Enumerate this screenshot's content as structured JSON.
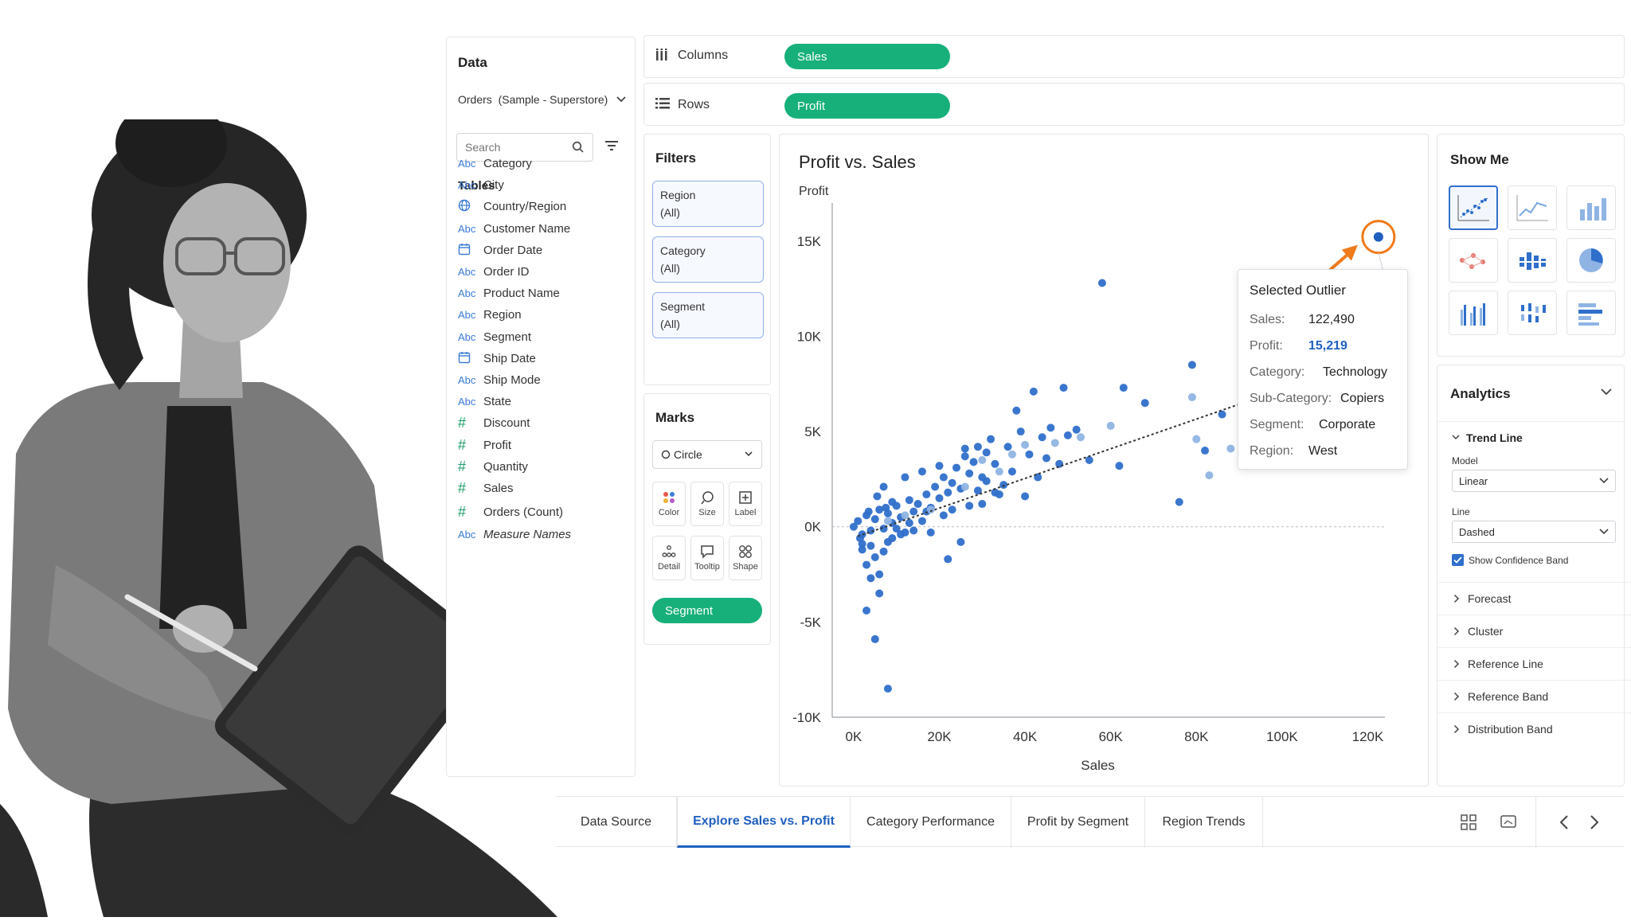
{
  "data_pane": {
    "title": "Data",
    "source": "Orders  (Sample - Superstore)",
    "search_placeholder": "Search",
    "tables_label": "Tables",
    "fields": [
      {
        "type": "Abc",
        "name": "Category"
      },
      {
        "type": "Abc",
        "name": "City"
      },
      {
        "type": "globe",
        "name": "Country/Region"
      },
      {
        "type": "Abc",
        "name": "Customer Name"
      },
      {
        "type": "date",
        "name": "Order Date"
      },
      {
        "type": "Abc",
        "name": "Order ID"
      },
      {
        "type": "Abc",
        "name": "Product Name"
      },
      {
        "type": "Abc",
        "name": "Region"
      },
      {
        "type": "Abc",
        "name": "Segment"
      },
      {
        "type": "date",
        "name": "Ship Date"
      },
      {
        "type": "Abc",
        "name": "Ship Mode"
      },
      {
        "type": "Abc",
        "name": "State"
      },
      {
        "type": "#",
        "name": "Discount"
      },
      {
        "type": "#",
        "name": "Profit"
      },
      {
        "type": "#",
        "name": "Quantity"
      },
      {
        "type": "#",
        "name": "Sales"
      },
      {
        "type": "#",
        "name": "Orders (Count)"
      },
      {
        "type": "Abc",
        "name": "Measure Names"
      }
    ]
  },
  "shelves": {
    "columns_label": "Columns",
    "columns_pill": "Sales",
    "rows_label": "Rows",
    "rows_pill": "Profit"
  },
  "filters": {
    "title": "Filters",
    "items": [
      {
        "name": "Region",
        "value": "(All)"
      },
      {
        "name": "Category",
        "value": "(All)"
      },
      {
        "name": "Segment",
        "value": "(All)"
      }
    ]
  },
  "marks": {
    "title": "Marks",
    "mark_type": "Circle",
    "buttons": [
      "Color",
      "Size",
      "Label",
      "Detail",
      "Tooltip",
      "Shape"
    ],
    "segment_pill": "Segment"
  },
  "chart_data": {
    "type": "scatter",
    "title": "Profit vs. Sales",
    "xlabel": "Sales",
    "ylabel": "Profit",
    "x_ticks": [
      "0K",
      "20K",
      "40K",
      "60K",
      "80K",
      "100K",
      "120K"
    ],
    "y_ticks": [
      "15K",
      "10K",
      "5K",
      "0K",
      "-5K",
      "-10K"
    ],
    "xlim": [
      -5000,
      124000
    ],
    "ylim": [
      -10000,
      17000
    ],
    "trend_line": {
      "model": "Linear",
      "line": "Dashed",
      "x0": 1000,
      "y0": -500,
      "x1": 96000,
      "y1": 6900
    },
    "outlier": {
      "x": 122490,
      "y": 15219
    },
    "series": [
      {
        "name": "Segment",
        "points": [
          [
            0,
            0
          ],
          [
            1000,
            300
          ],
          [
            2000,
            -400
          ],
          [
            3000,
            600
          ],
          [
            4000,
            -200
          ],
          [
            5000,
            400
          ],
          [
            6000,
            900
          ],
          [
            7000,
            -100
          ],
          [
            8000,
            700
          ],
          [
            9000,
            200
          ],
          [
            10000,
            1100
          ],
          [
            11000,
            500
          ],
          [
            12000,
            -300
          ],
          [
            13000,
            1400
          ],
          [
            14000,
            800
          ],
          [
            15000,
            1200
          ],
          [
            16000,
            300
          ],
          [
            17000,
            1700
          ],
          [
            18000,
            1000
          ],
          [
            19000,
            2100
          ],
          [
            20000,
            1500
          ],
          [
            21000,
            2600
          ],
          [
            22000,
            1800
          ],
          [
            23000,
            2300
          ],
          [
            24000,
            3100
          ],
          [
            25000,
            2000
          ],
          [
            26000,
            3700
          ],
          [
            27000,
            2800
          ],
          [
            28000,
            3400
          ],
          [
            29000,
            4200
          ],
          [
            30000,
            2600
          ],
          [
            31000,
            3900
          ],
          [
            32000,
            4600
          ],
          [
            33000,
            3300
          ],
          [
            35000,
            2200
          ],
          [
            36000,
            4200
          ],
          [
            38000,
            6100
          ],
          [
            40000,
            1600
          ],
          [
            42000,
            7100
          ],
          [
            44000,
            4700
          ],
          [
            46000,
            5200
          ],
          [
            48000,
            3300
          ],
          [
            49000,
            7300
          ],
          [
            50000,
            4800
          ],
          [
            52000,
            5100
          ],
          [
            55000,
            3500
          ],
          [
            58000,
            12800
          ],
          [
            62000,
            3200
          ],
          [
            68000,
            6500
          ],
          [
            76000,
            1300
          ],
          [
            79000,
            8500
          ],
          [
            82000,
            4000
          ],
          [
            86000,
            5900
          ],
          [
            2000,
            -1200
          ],
          [
            3000,
            -2000
          ],
          [
            4000,
            -2700
          ],
          [
            5000,
            -1600
          ],
          [
            6000,
            -3500
          ],
          [
            7000,
            -1300
          ],
          [
            8000,
            -800
          ],
          [
            3000,
            -4400
          ],
          [
            5000,
            -5900
          ],
          [
            8000,
            -8500
          ],
          [
            4000,
            -1000
          ],
          [
            9000,
            -600
          ],
          [
            11000,
            -400
          ],
          [
            14000,
            -200
          ],
          [
            18000,
            -300
          ],
          [
            22000,
            -1700
          ],
          [
            25000,
            -800
          ],
          [
            6000,
            -2500
          ],
          [
            2000,
            -900
          ],
          [
            7000,
            2100
          ],
          [
            9000,
            1300
          ],
          [
            12000,
            2600
          ],
          [
            16000,
            2900
          ],
          [
            20000,
            3200
          ],
          [
            26000,
            4100
          ],
          [
            30000,
            1200
          ],
          [
            34000,
            1700
          ],
          [
            39000,
            5000
          ],
          [
            45000,
            3600
          ],
          [
            63000,
            7300
          ],
          [
            1500,
            -600
          ],
          [
            3500,
            800
          ],
          [
            5500,
            1600
          ],
          [
            7500,
            1000
          ],
          [
            10000,
            -100
          ],
          [
            13000,
            200
          ],
          [
            17000,
            800
          ],
          [
            21000,
            600
          ],
          [
            23000,
            900
          ],
          [
            27000,
            1100
          ],
          [
            29000,
            1900
          ],
          [
            31000,
            2400
          ],
          [
            33000,
            1800
          ],
          [
            37000,
            2900
          ],
          [
            41000,
            3800
          ],
          [
            43000,
            2600
          ]
        ]
      },
      {
        "name": "Segment-light",
        "points": [
          [
            26000,
            2100
          ],
          [
            30000,
            3500
          ],
          [
            34000,
            2900
          ],
          [
            37000,
            3800
          ],
          [
            40000,
            4300
          ],
          [
            47000,
            4400
          ],
          [
            53000,
            4700
          ],
          [
            60000,
            5300
          ],
          [
            79000,
            6800
          ],
          [
            80000,
            4600
          ],
          [
            83000,
            2700
          ],
          [
            88000,
            4100
          ],
          [
            18000,
            900
          ],
          [
            12000,
            600
          ],
          [
            8000,
            300
          ]
        ]
      }
    ]
  },
  "tooltip": {
    "title": "Selected Outlier",
    "rows": [
      {
        "label": "Sales:",
        "value": "122,490"
      },
      {
        "label": "Profit:",
        "value": "15,219"
      },
      {
        "label": "Category:",
        "value": "Technology"
      },
      {
        "label": "Sub-Category:",
        "value": "Copiers"
      },
      {
        "label": "Segment:",
        "value": "Corporate"
      },
      {
        "label": "Region:",
        "value": "West"
      }
    ]
  },
  "show_me": {
    "title": "Show Me"
  },
  "analytics": {
    "title": "Analytics",
    "trend_line_label": "Trend Line",
    "model_label": "Model",
    "model_value": "Linear",
    "line_label": "Line",
    "line_value": "Dashed",
    "confidence_label": "Show Confidence Band",
    "items": [
      "Forecast",
      "Cluster",
      "Reference Line",
      "Reference Band",
      "Distribution Band"
    ]
  },
  "tabs": {
    "items": [
      "Data Source",
      "Explore Sales vs. Profit",
      "Category Performance",
      "Profit by Segment",
      "Region Trends"
    ],
    "active_index": 1
  },
  "colors": {
    "accent": "#17b07a",
    "point": "#2f6fcb",
    "point_light": "#8fb4e4",
    "outlier_ring": "#f07a1a"
  }
}
